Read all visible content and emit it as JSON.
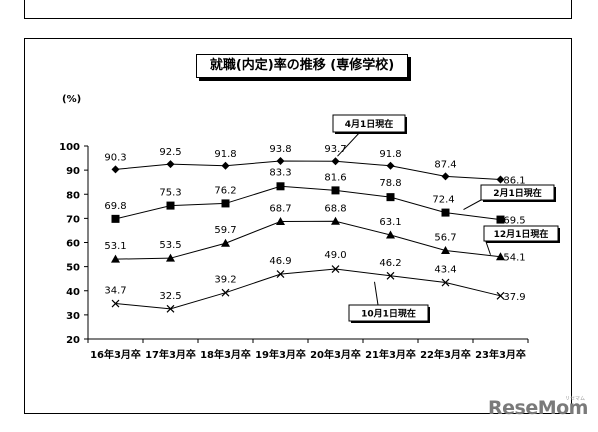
{
  "chart_data": {
    "type": "line",
    "title": "就職(内定)率の推移 (専修学校)",
    "ylabel": "(%)",
    "xlabel": "",
    "ylim": [
      20,
      100
    ],
    "yticks": [
      20,
      30,
      40,
      50,
      60,
      70,
      80,
      90,
      100
    ],
    "categories": [
      "16年3月卒",
      "17年3月卒",
      "18年3月卒",
      "19年3月卒",
      "20年3月卒",
      "21年3月卒",
      "22年3月卒",
      "23年3月卒"
    ],
    "grid": false,
    "series": [
      {
        "name": "4月1日現在",
        "marker": "diamond",
        "values": [
          90.3,
          92.5,
          91.8,
          93.8,
          93.7,
          91.8,
          87.4,
          86.1
        ]
      },
      {
        "name": "2月1日現在",
        "marker": "square",
        "values": [
          69.8,
          75.3,
          76.2,
          83.3,
          81.6,
          78.8,
          72.4,
          69.5
        ]
      },
      {
        "name": "12月1日現在",
        "marker": "triangle",
        "values": [
          53.1,
          53.5,
          59.7,
          68.7,
          68.8,
          63.1,
          56.7,
          54.1
        ]
      },
      {
        "name": "10月1日現在",
        "marker": "x",
        "values": [
          34.7,
          32.5,
          39.2,
          46.9,
          49.0,
          46.2,
          43.4,
          37.9
        ]
      }
    ],
    "value_labels": [
      [
        "90.3",
        "92.5",
        "91.8",
        "93.8",
        "93.7",
        "91.8",
        "87.4",
        "86.1"
      ],
      [
        "69.8",
        "75.3",
        "76.2",
        "83.3",
        "81.6",
        "78.8",
        "72.4",
        "69.5"
      ],
      [
        "53.1",
        "53.5",
        "59.7",
        "68.7",
        "68.8",
        "63.1",
        "56.7",
        "54.1"
      ],
      [
        "34.7",
        "32.5",
        "39.2",
        "46.9",
        "49.0",
        "46.2",
        "43.4",
        "37.9"
      ]
    ]
  },
  "watermark": {
    "logo": "ReseMom",
    "kana": "リセマム"
  }
}
